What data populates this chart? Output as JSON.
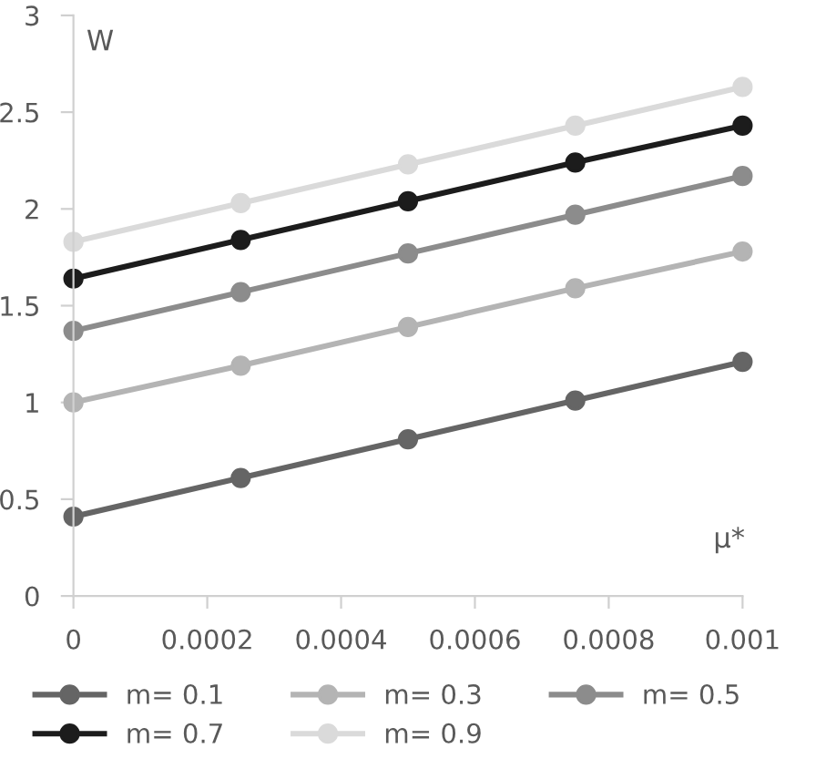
{
  "chart_data": {
    "type": "line",
    "xlabel": "μ*",
    "ylabel": "W",
    "x": [
      0,
      0.00025,
      0.0005,
      0.00075,
      0.001
    ],
    "series": [
      {
        "name": "m= 0.1",
        "color": "#656565",
        "values": [
          0.41,
          0.61,
          0.81,
          1.01,
          1.21
        ]
      },
      {
        "name": "m= 0.3",
        "color": "#b4b4b4",
        "values": [
          1.0,
          1.19,
          1.39,
          1.59,
          1.78
        ]
      },
      {
        "name": "m= 0.5",
        "color": "#8c8c8c",
        "values": [
          1.37,
          1.57,
          1.77,
          1.97,
          2.17
        ]
      },
      {
        "name": "m= 0.7",
        "color": "#1c1c1c",
        "values": [
          1.64,
          1.84,
          2.04,
          2.24,
          2.43
        ]
      },
      {
        "name": "m= 0.9",
        "color": "#dadada",
        "values": [
          1.83,
          2.03,
          2.23,
          2.43,
          2.63
        ]
      }
    ],
    "xlim": [
      0,
      0.001
    ],
    "xticks": [
      0,
      0.0002,
      0.0004,
      0.0006,
      0.0008,
      0.001
    ],
    "ylim": [
      0,
      3
    ],
    "yticks": [
      0,
      0.5,
      1,
      1.5,
      2,
      2.5,
      3
    ],
    "grid": false,
    "legend": "bottom",
    "marker": "circle",
    "line_style": "solid"
  }
}
